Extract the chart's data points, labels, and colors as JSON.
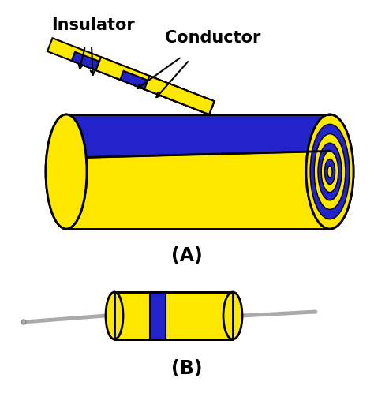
{
  "yellow": "#FFE800",
  "blue": "#2323CC",
  "black": "#000000",
  "gray": "#AAAAAA",
  "dark_gray": "#888888",
  "white": "#FFFFFF",
  "background": "#FFFFFF",
  "label_A": "(A)",
  "label_B": "(B)",
  "label_insulator": "Insulator",
  "label_conductor": "Conductor",
  "fig_width": 4.74,
  "fig_height": 5.22,
  "dpi": 100,
  "lw_main": 2.0,
  "lw_thin": 1.2
}
